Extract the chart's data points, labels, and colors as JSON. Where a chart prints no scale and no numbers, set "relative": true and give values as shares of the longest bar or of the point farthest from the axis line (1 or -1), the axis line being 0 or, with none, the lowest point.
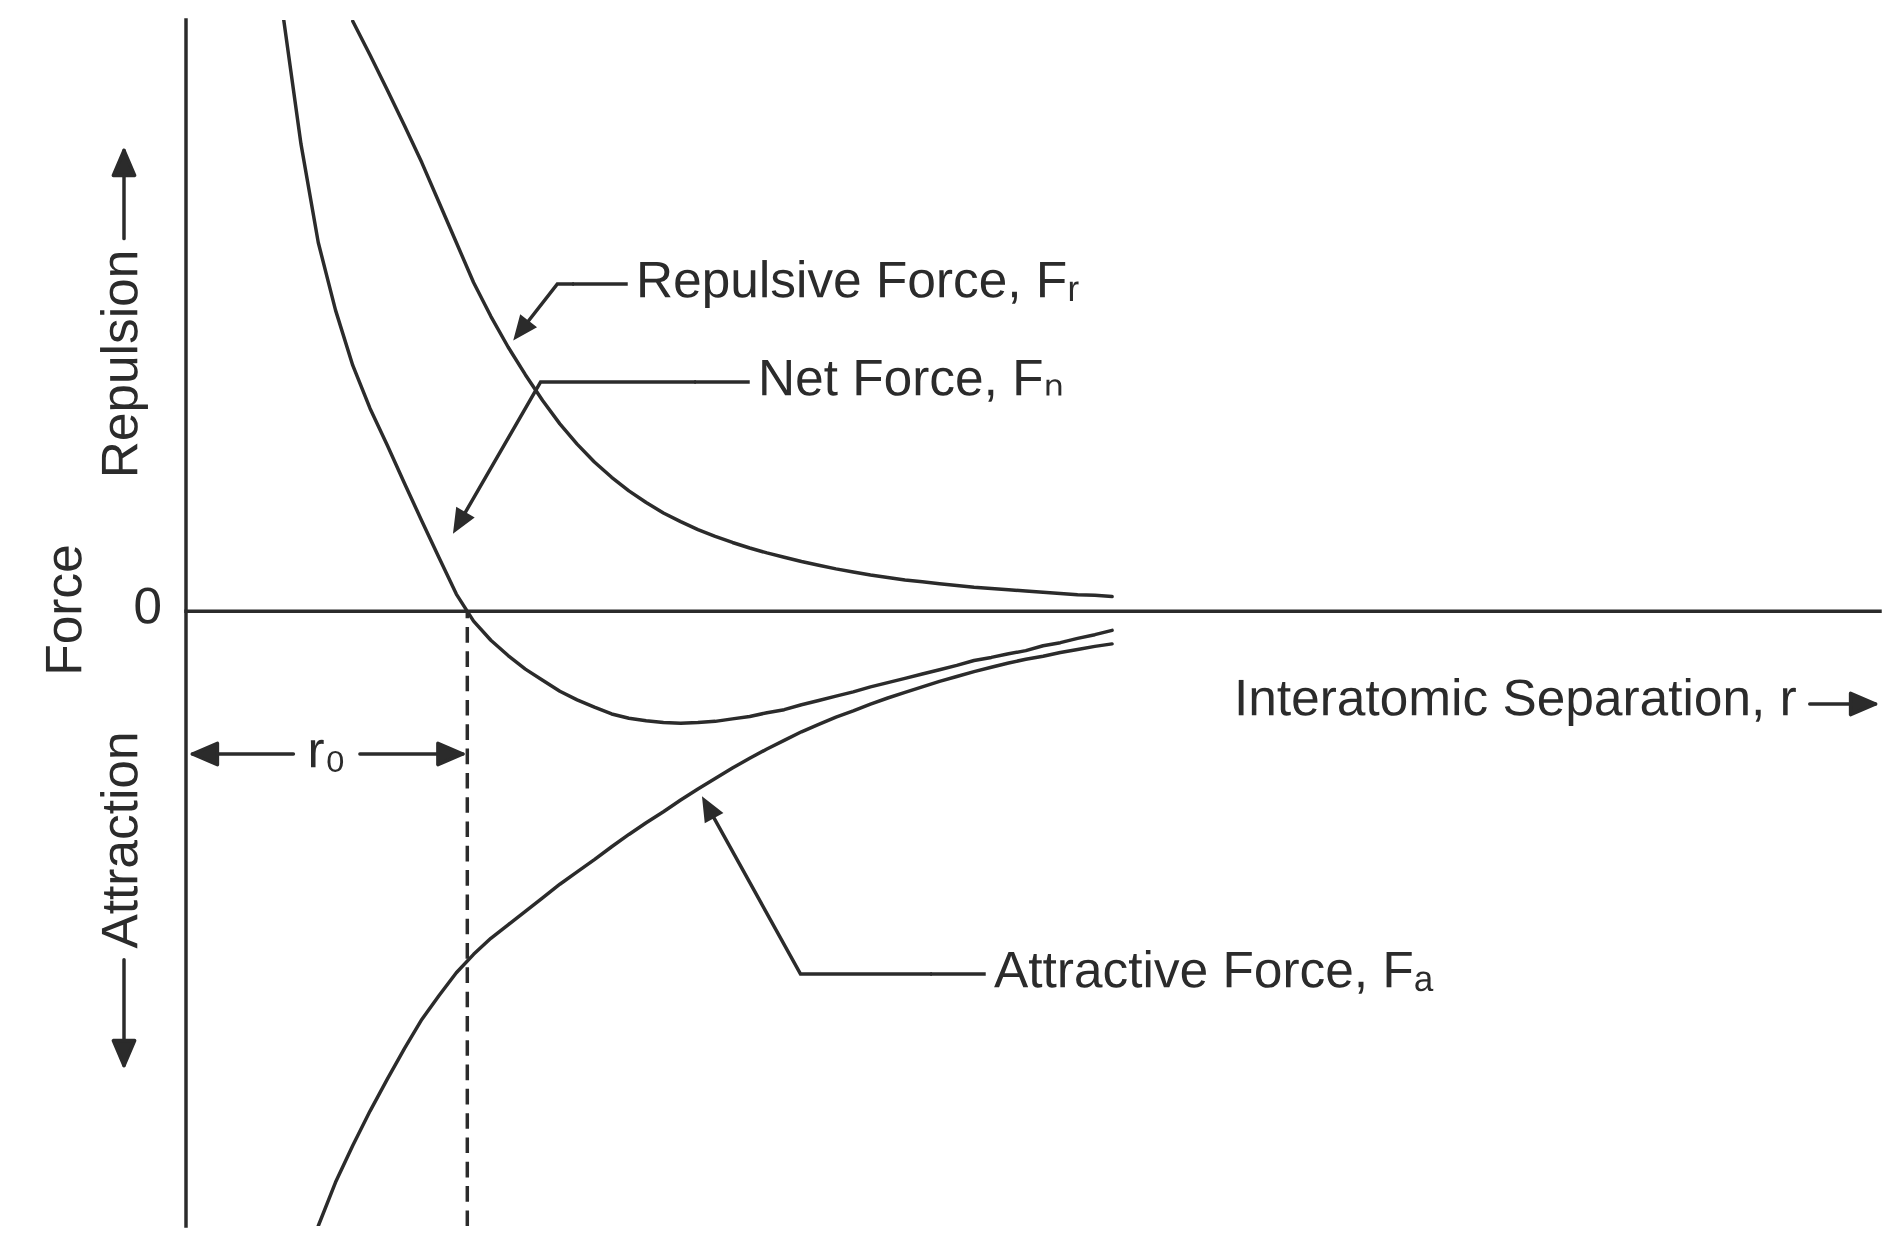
{
  "chart_data": {
    "type": "line",
    "relative": true,
    "legend": "center",
    "xlabel": "Interatomic Separation, r",
    "ylabel": "Force",
    "categories": [
      null,
      null,
      null,
      null,
      null,
      null,
      null,
      null,
      null,
      null,
      null,
      null,
      null,
      null,
      null,
      null,
      null,
      null,
      null,
      null,
      null,
      null,
      null,
      null,
      null,
      null,
      null,
      null,
      null,
      null,
      null,
      null,
      null,
      null,
      null,
      null,
      null,
      null,
      null,
      null,
      null,
      null,
      null,
      null,
      null,
      null,
      null,
      null,
      null
    ],
    "series": [
      {
        "name": "Repulsive Force, Fᵣ",
        "color": "#2b2b2b",
        "values": [
          null,
          null,
          null,
          null,
          0.96,
          0.905,
          0.848,
          0.79,
          0.73,
          0.665,
          0.6,
          0.535,
          0.48,
          0.43,
          0.385,
          0.343,
          0.305,
          0.272,
          0.243,
          0.218,
          0.196,
          0.177,
          0.16,
          0.146,
          0.133,
          0.122,
          0.112,
          0.103,
          0.095,
          0.088,
          0.081,
          0.075,
          0.069,
          0.064,
          0.059,
          0.055,
          0.051,
          0.048,
          0.045,
          0.042,
          0.039,
          0.037,
          0.035,
          0.033,
          0.031,
          0.029,
          0.027,
          0.026,
          0.024
        ]
      },
      {
        "name": "Net Force, Fₙ",
        "color": "#2b2b2b",
        "values": [
          0.962,
          0.76,
          0.6,
          0.49,
          0.4,
          0.33,
          0.27,
          0.208,
          0.147,
          0.087,
          0.028,
          -0.016,
          -0.047,
          -0.072,
          -0.094,
          -0.112,
          -0.13,
          -0.144,
          -0.156,
          -0.167,
          -0.174,
          -0.178,
          -0.181,
          -0.182,
          -0.181,
          -0.179,
          -0.175,
          -0.171,
          -0.165,
          -0.16,
          -0.152,
          -0.145,
          -0.138,
          -0.131,
          -0.123,
          -0.116,
          -0.109,
          -0.102,
          -0.095,
          -0.088,
          -0.08,
          -0.075,
          -0.069,
          -0.064,
          -0.056,
          -0.051,
          -0.044,
          -0.038,
          -0.031
        ]
      },
      {
        "name": "Attractive Force, Fₐ",
        "color": "#2b2b2b",
        "values": [
          null,
          null,
          -1.0,
          -0.929,
          -0.869,
          -0.813,
          -0.761,
          -0.711,
          -0.664,
          -0.625,
          -0.588,
          -0.558,
          -0.532,
          -0.51,
          -0.488,
          -0.466,
          -0.444,
          -0.424,
          -0.404,
          -0.383,
          -0.363,
          -0.344,
          -0.326,
          -0.307,
          -0.289,
          -0.272,
          -0.255,
          -0.239,
          -0.224,
          -0.21,
          -0.196,
          -0.184,
          -0.172,
          -0.162,
          -0.151,
          -0.141,
          -0.132,
          -0.123,
          -0.114,
          -0.106,
          -0.098,
          -0.091,
          -0.084,
          -0.078,
          -0.073,
          -0.067,
          -0.062,
          -0.057,
          -0.053
        ]
      }
    ],
    "annotations": [
      "0",
      "Repulsion",
      "Attraction",
      "r₀"
    ]
  }
}
